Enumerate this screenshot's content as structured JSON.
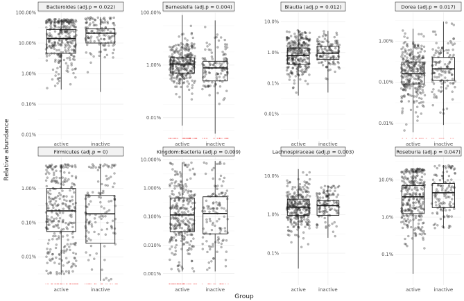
{
  "chart_data": {
    "type": "box",
    "xlabel": "Group",
    "ylabel": "Relative abundance",
    "categories": [
      "active",
      "inactive"
    ],
    "y_scale": "log10",
    "points_jittered": true,
    "colors": {
      "points": "#333333",
      "zero_marks": "#f04646",
      "strip": "#f2f2f2"
    },
    "panels": [
      {
        "title": "Bacteroides (adj.p = 0.022)",
        "ylim": [
          0.007,
          100
        ],
        "ticks": [
          0.01,
          0.1,
          1,
          10,
          100
        ],
        "tick_labels": [
          "0.01%",
          "0.10%",
          "1.00%",
          "10.00%",
          "100.00%"
        ],
        "groups": [
          {
            "name": "active",
            "n": 280,
            "q1": 4.6,
            "median": 14,
            "q3": 28,
            "low": 0.3,
            "high": 60,
            "zeros": 0
          },
          {
            "name": "inactive",
            "n": 120,
            "q1": 10,
            "median": 21,
            "q3": 29,
            "low": 0.25,
            "high": 70,
            "zeros": 0
          }
        ]
      },
      {
        "title": "Barnesiella (adj.p = 0.004)",
        "ylim": [
          0.0015,
          100
        ],
        "ticks": [
          0.01,
          1,
          100
        ],
        "tick_labels": [
          "0.01%",
          "1.00%",
          "100.00%"
        ],
        "groups": [
          {
            "name": "active",
            "n": 280,
            "q1": 0.5,
            "median": 1.1,
            "q3": 1.9,
            "low": 0.005,
            "high": 80,
            "zeros": 40
          },
          {
            "name": "inactive",
            "n": 120,
            "q1": 0.25,
            "median": 0.78,
            "q3": 1.4,
            "low": 0.0025,
            "high": 50,
            "zeros": 22
          }
        ]
      },
      {
        "title": "Blautia (adj.p = 0.012)",
        "ylim": [
          0.0015,
          20
        ],
        "ticks": [
          0.01,
          0.1,
          1,
          10
        ],
        "tick_labels": [
          "0.01%",
          "0.1%",
          "1.0%",
          "10.0%"
        ],
        "groups": [
          {
            "name": "active",
            "n": 280,
            "q1": 0.42,
            "median": 0.8,
            "q3": 1.4,
            "low": 0.04,
            "high": 5.5,
            "zeros": 0
          },
          {
            "name": "inactive",
            "n": 120,
            "q1": 0.6,
            "median": 0.95,
            "q3": 1.6,
            "low": 0.05,
            "high": 5.0,
            "zeros": 0
          }
        ]
      },
      {
        "title": "Dorea (adj.p = 0.017)",
        "ylim": [
          0.004,
          5
        ],
        "ticks": [
          0.01,
          0.1,
          1
        ],
        "tick_labels": [
          "0.01%",
          "0.10%",
          "1.00%"
        ],
        "groups": [
          {
            "name": "active",
            "n": 280,
            "q1": 0.09,
            "median": 0.16,
            "q3": 0.31,
            "low": 0.006,
            "high": 2.0,
            "zeros": 10
          },
          {
            "name": "inactive",
            "n": 120,
            "q1": 0.11,
            "median": 0.21,
            "q3": 0.4,
            "low": 0.009,
            "high": 3.0,
            "zeros": 8
          }
        ]
      },
      {
        "title": "Firmicutes (adj.p = 0)",
        "ylim": [
          0.0015,
          8
        ],
        "ticks": [
          0.01,
          0.1,
          1
        ],
        "tick_labels": [
          "0.01%",
          "0.10%",
          "1.00%"
        ],
        "groups": [
          {
            "name": "active",
            "n": 280,
            "q1": 0.055,
            "median": 0.22,
            "q3": 1.0,
            "low": 0.003,
            "high": 5.0,
            "zeros": 40
          },
          {
            "name": "inactive",
            "n": 120,
            "q1": 0.025,
            "median": 0.18,
            "q3": 0.62,
            "low": 0.002,
            "high": 5.0,
            "zeros": 25
          }
        ]
      },
      {
        "title": "Kingdom:Bacteria (adj.p = 0.009)",
        "ylim": [
          0.0004,
          12
        ],
        "ticks": [
          0.001,
          0.01,
          0.1,
          1,
          10
        ],
        "tick_labels": [
          "0.001%",
          "0.010%",
          "0.100%",
          "1.000%",
          "10.000%"
        ],
        "groups": [
          {
            "name": "active",
            "n": 280,
            "q1": 0.03,
            "median": 0.115,
            "q3": 0.45,
            "low": 0.0012,
            "high": 8.0,
            "zeros": 45
          },
          {
            "name": "inactive",
            "n": 120,
            "q1": 0.025,
            "median": 0.13,
            "q3": 0.5,
            "low": 0.0012,
            "high": 9.0,
            "zeros": 20
          }
        ]
      },
      {
        "title": "Lachnospiraceae (adj.p = 0.003)",
        "ylim": [
          0.015,
          30
        ],
        "ticks": [
          0.1,
          1,
          10
        ],
        "tick_labels": [
          "0.1%",
          "1.0%",
          "10.0%"
        ],
        "groups": [
          {
            "name": "active",
            "n": 280,
            "q1": 0.95,
            "median": 1.55,
            "q3": 2.5,
            "low": 0.04,
            "high": 15,
            "zeros": 0
          },
          {
            "name": "inactive",
            "n": 120,
            "q1": 0.95,
            "median": 1.7,
            "q3": 2.3,
            "low": 0.25,
            "high": 5.5,
            "zeros": 0
          }
        ]
      },
      {
        "title": "Roseburia (adj.p = 0.047)",
        "ylim": [
          0.015,
          40
        ],
        "ticks": [
          0.1,
          1,
          10
        ],
        "tick_labels": [
          "0.1%",
          "1.0%",
          "10.0%"
        ],
        "groups": [
          {
            "name": "active",
            "n": 280,
            "q1": 1.25,
            "median": 3.5,
            "q3": 7.0,
            "low": 0.03,
            "high": 20,
            "zeros": 0
          },
          {
            "name": "inactive",
            "n": 120,
            "q1": 1.8,
            "median": 4.5,
            "q3": 8.0,
            "low": 0.5,
            "high": 25,
            "zeros": 0
          }
        ]
      }
    ]
  }
}
